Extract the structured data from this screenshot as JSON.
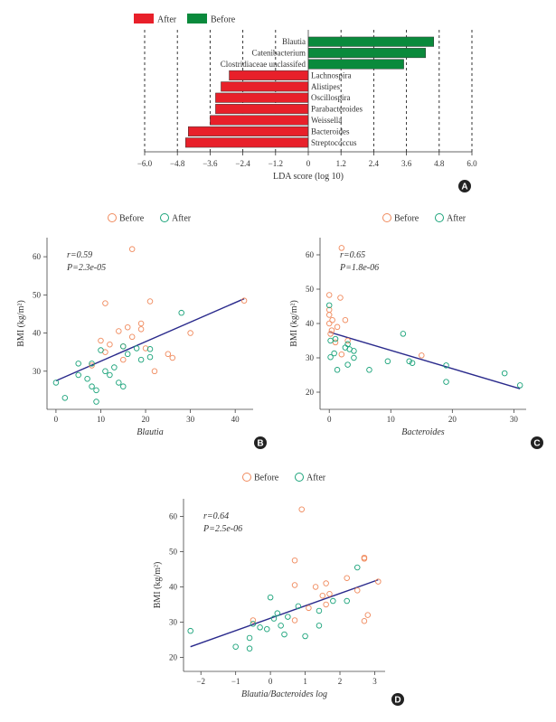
{
  "colors": {
    "after_bar": "#e8202a",
    "before_bar": "#0a8a3c",
    "before_pt": "#f08a5d",
    "after_pt": "#1aa37a",
    "line": "#2a2a8c"
  },
  "chart_data": [
    {
      "panel": "A",
      "type": "bar",
      "orientation": "horizontal",
      "legend": [
        "After",
        "Before"
      ],
      "xlabel": "LDA score (log 10)",
      "xlim": [
        -6.0,
        6.0
      ],
      "xticks": [
        "−6.0",
        "−4.8",
        "−3.6",
        "−2.4",
        "−1.2",
        "0",
        "1.2",
        "2.4",
        "3.6",
        "4.8",
        "6.0"
      ],
      "bars": [
        {
          "name": "Blautia",
          "value": 4.6,
          "group": "Before"
        },
        {
          "name": "Catenibacterium",
          "value": 4.3,
          "group": "Before"
        },
        {
          "name": "Clostridiaceae unclassifed",
          "value": 3.5,
          "group": "Before"
        },
        {
          "name": "Lachnospira",
          "value": -2.9,
          "group": "After"
        },
        {
          "name": "Alistipes",
          "value": -3.2,
          "group": "After"
        },
        {
          "name": "Oscillospira",
          "value": -3.4,
          "group": "After"
        },
        {
          "name": "Parabacteroides",
          "value": -3.4,
          "group": "After"
        },
        {
          "name": "Weissella",
          "value": -3.6,
          "group": "After"
        },
        {
          "name": "Bacteroides",
          "value": -4.4,
          "group": "After"
        },
        {
          "name": "Streptococcus",
          "value": -4.5,
          "group": "After"
        }
      ]
    },
    {
      "panel": "B",
      "type": "scatter",
      "legend": [
        "Before",
        "After"
      ],
      "stat_r": "r=0.59",
      "stat_p": "P=2.3e-05",
      "xlabel": "Blautia",
      "ylabel": "BMI (kg/m²)",
      "xlim": [
        -2,
        44
      ],
      "ylim": [
        20,
        65
      ],
      "xticks": [
        0,
        10,
        20,
        30,
        40
      ],
      "yticks": [
        30,
        40,
        50,
        60
      ],
      "xtick_labels": [
        "0",
        "10",
        "20",
        "30",
        "40"
      ],
      "ytick_labels": [
        "30",
        "40",
        "50",
        "60"
      ],
      "line": [
        [
          0,
          27.5
        ],
        [
          42,
          49
        ]
      ],
      "before": [
        [
          17,
          62
        ],
        [
          11,
          47.8
        ],
        [
          21,
          48.3
        ],
        [
          42,
          48.5
        ],
        [
          19,
          42.5
        ],
        [
          16,
          41.5
        ],
        [
          14,
          40.5
        ],
        [
          19,
          41
        ],
        [
          30,
          40
        ],
        [
          17,
          39
        ],
        [
          10,
          38
        ],
        [
          12,
          37
        ],
        [
          15,
          36.5
        ],
        [
          20,
          36
        ],
        [
          11,
          35
        ],
        [
          25,
          34.5
        ],
        [
          26,
          33.5
        ],
        [
          15,
          33
        ],
        [
          22,
          30
        ],
        [
          8,
          31.5
        ]
      ],
      "after": [
        [
          28,
          45.3
        ],
        [
          18,
          36
        ],
        [
          21,
          35.8
        ],
        [
          15,
          36.5
        ],
        [
          10,
          35.5
        ],
        [
          16,
          34.5
        ],
        [
          19,
          33
        ],
        [
          21,
          33.7
        ],
        [
          5,
          32
        ],
        [
          8,
          32
        ],
        [
          13,
          31
        ],
        [
          11,
          30
        ],
        [
          5,
          29
        ],
        [
          12,
          29
        ],
        [
          14,
          27
        ],
        [
          7,
          28
        ],
        [
          15,
          26
        ],
        [
          8,
          26
        ],
        [
          9,
          25
        ],
        [
          0,
          27
        ],
        [
          2,
          23
        ],
        [
          9,
          22
        ]
      ]
    },
    {
      "panel": "C",
      "type": "scatter",
      "legend": [
        "Before",
        "After"
      ],
      "stat_r": "r=0.65",
      "stat_p": "P=1.8e-06",
      "xlabel": "Bacteroides",
      "ylabel": "BMI (kg/m²)",
      "xlim": [
        -1.5,
        32
      ],
      "ylim": [
        15,
        65
      ],
      "xticks": [
        0,
        10,
        20,
        30
      ],
      "yticks": [
        20,
        30,
        40,
        50,
        60
      ],
      "xtick_labels": [
        "0",
        "10",
        "20",
        "30"
      ],
      "ytick_labels": [
        "20",
        "30",
        "40",
        "50",
        "60"
      ],
      "line": [
        [
          0,
          37.5
        ],
        [
          31,
          21
        ]
      ],
      "before": [
        [
          2,
          62
        ],
        [
          0,
          48.3
        ],
        [
          1.8,
          47.5
        ],
        [
          0,
          44
        ],
        [
          0,
          42.5
        ],
        [
          0.5,
          41
        ],
        [
          2.6,
          41
        ],
        [
          0,
          40
        ],
        [
          1.3,
          39
        ],
        [
          0.4,
          38
        ],
        [
          0.2,
          37
        ],
        [
          3,
          35
        ],
        [
          1,
          34.5
        ],
        [
          2,
          31
        ],
        [
          15,
          30.7
        ]
      ],
      "after": [
        [
          0,
          45.3
        ],
        [
          12,
          37
        ],
        [
          1,
          35.5
        ],
        [
          0.2,
          35
        ],
        [
          3,
          34
        ],
        [
          2.6,
          33
        ],
        [
          3.3,
          32.5
        ],
        [
          4,
          32
        ],
        [
          0.8,
          31.3
        ],
        [
          4,
          30
        ],
        [
          0.2,
          30.2
        ],
        [
          9.5,
          29
        ],
        [
          13,
          29
        ],
        [
          13.5,
          28.5
        ],
        [
          19,
          27.8
        ],
        [
          6.5,
          26.5
        ],
        [
          1.3,
          26.5
        ],
        [
          28.5,
          25.5
        ],
        [
          19,
          23
        ],
        [
          31,
          22
        ],
        [
          3,
          28
        ]
      ]
    },
    {
      "panel": "D",
      "type": "scatter",
      "legend": [
        "Before",
        "After"
      ],
      "stat_r": "r=0.64",
      "stat_p": "P=2.5e-06",
      "xlabel": "Blautia/Bacteroides log",
      "ylabel": "BMI (kg/m²)",
      "xlim": [
        -2.5,
        3.3
      ],
      "ylim": [
        16,
        65
      ],
      "xticks": [
        -2,
        -1,
        0,
        1,
        2,
        3
      ],
      "yticks": [
        20,
        30,
        40,
        50,
        60
      ],
      "xtick_labels": [
        "−2",
        "−1",
        "0",
        "1",
        "2",
        "3"
      ],
      "ytick_labels": [
        "20",
        "30",
        "40",
        "50",
        "60"
      ],
      "line": [
        [
          -2.3,
          23
        ],
        [
          3.1,
          42
        ]
      ],
      "before": [
        [
          0.9,
          62
        ],
        [
          2.7,
          48.3
        ],
        [
          2.7,
          48
        ],
        [
          0.7,
          47.5
        ],
        [
          2.2,
          42.5
        ],
        [
          3.1,
          41.5
        ],
        [
          1.6,
          41
        ],
        [
          0.7,
          40.5
        ],
        [
          1.3,
          40
        ],
        [
          2.5,
          39
        ],
        [
          1.7,
          38
        ],
        [
          1.5,
          37.5
        ],
        [
          1.6,
          35
        ],
        [
          1.1,
          34
        ],
        [
          2.8,
          32
        ],
        [
          0.7,
          30.5
        ],
        [
          2.7,
          30.3
        ],
        [
          -0.5,
          30.5
        ]
      ],
      "after": [
        [
          2.5,
          45.5
        ],
        [
          0,
          37
        ],
        [
          1.8,
          36
        ],
        [
          2.2,
          36
        ],
        [
          0.8,
          34.5
        ],
        [
          1.4,
          33.2
        ],
        [
          0.2,
          32.5
        ],
        [
          0.5,
          31.5
        ],
        [
          0.1,
          31
        ],
        [
          -0.5,
          29.5
        ],
        [
          0.3,
          29
        ],
        [
          -0.3,
          28.5
        ],
        [
          -0.1,
          28
        ],
        [
          0.4,
          26.5
        ],
        [
          1.4,
          29
        ],
        [
          1,
          26
        ],
        [
          -0.6,
          25.5
        ],
        [
          -2.3,
          27.5
        ],
        [
          -1,
          23
        ],
        [
          -0.6,
          22.5
        ]
      ]
    }
  ]
}
